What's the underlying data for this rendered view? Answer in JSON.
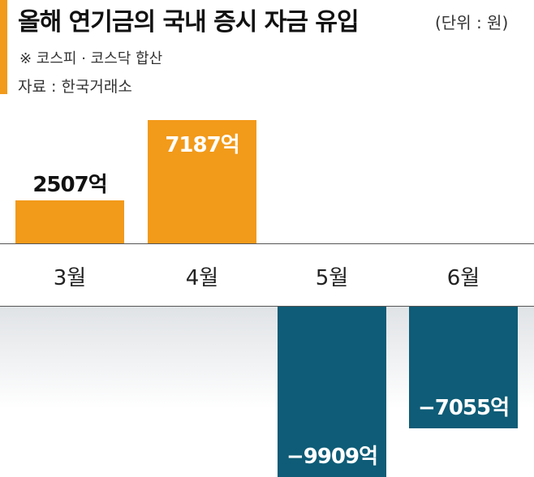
{
  "header": {
    "title": "올해 연기금의 국내 증시 자금 유입",
    "unit": "(단위 : 원)",
    "note": "※ 코스피 · 코스닥 합산",
    "source": "자료 : 한국거래소"
  },
  "colors": {
    "positive": "#f29a1a",
    "negative": "#0e5c77",
    "accent": "#f29a1a"
  },
  "chart_data": {
    "type": "bar",
    "title": "올해 연기금의 국내 증시 자금 유입",
    "categories": [
      "3월",
      "4월",
      "5월",
      "6월"
    ],
    "values": [
      2507,
      7187,
      -9909,
      -7055
    ],
    "value_labels": [
      "2507억",
      "7187억",
      "−9909억",
      "−7055억"
    ],
    "ylim": [
      -9909,
      7187
    ],
    "grid": false,
    "legend": "none"
  }
}
